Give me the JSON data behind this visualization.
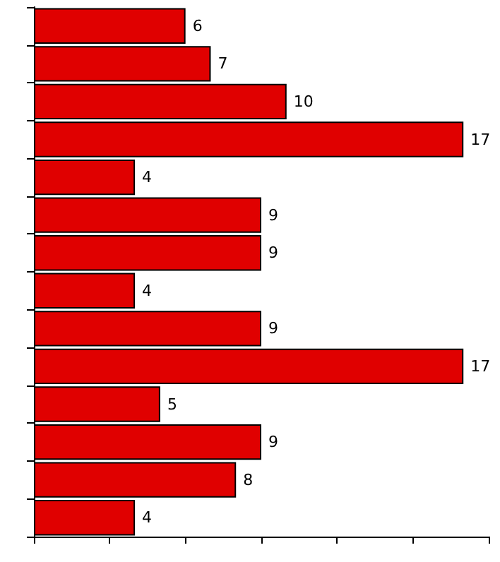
{
  "chart_data": {
    "type": "bar",
    "orientation": "horizontal",
    "categories": [
      null,
      null,
      null,
      null,
      null,
      null,
      null,
      null,
      null,
      null,
      null,
      null,
      null,
      null
    ],
    "values": [
      6,
      7,
      10,
      17,
      4,
      9,
      9,
      4,
      9,
      17,
      5,
      9,
      8,
      4
    ],
    "color": "#e00000",
    "data_labels": true,
    "xlim": [
      0,
      18
    ],
    "tick_labels": false,
    "grid": false
  }
}
